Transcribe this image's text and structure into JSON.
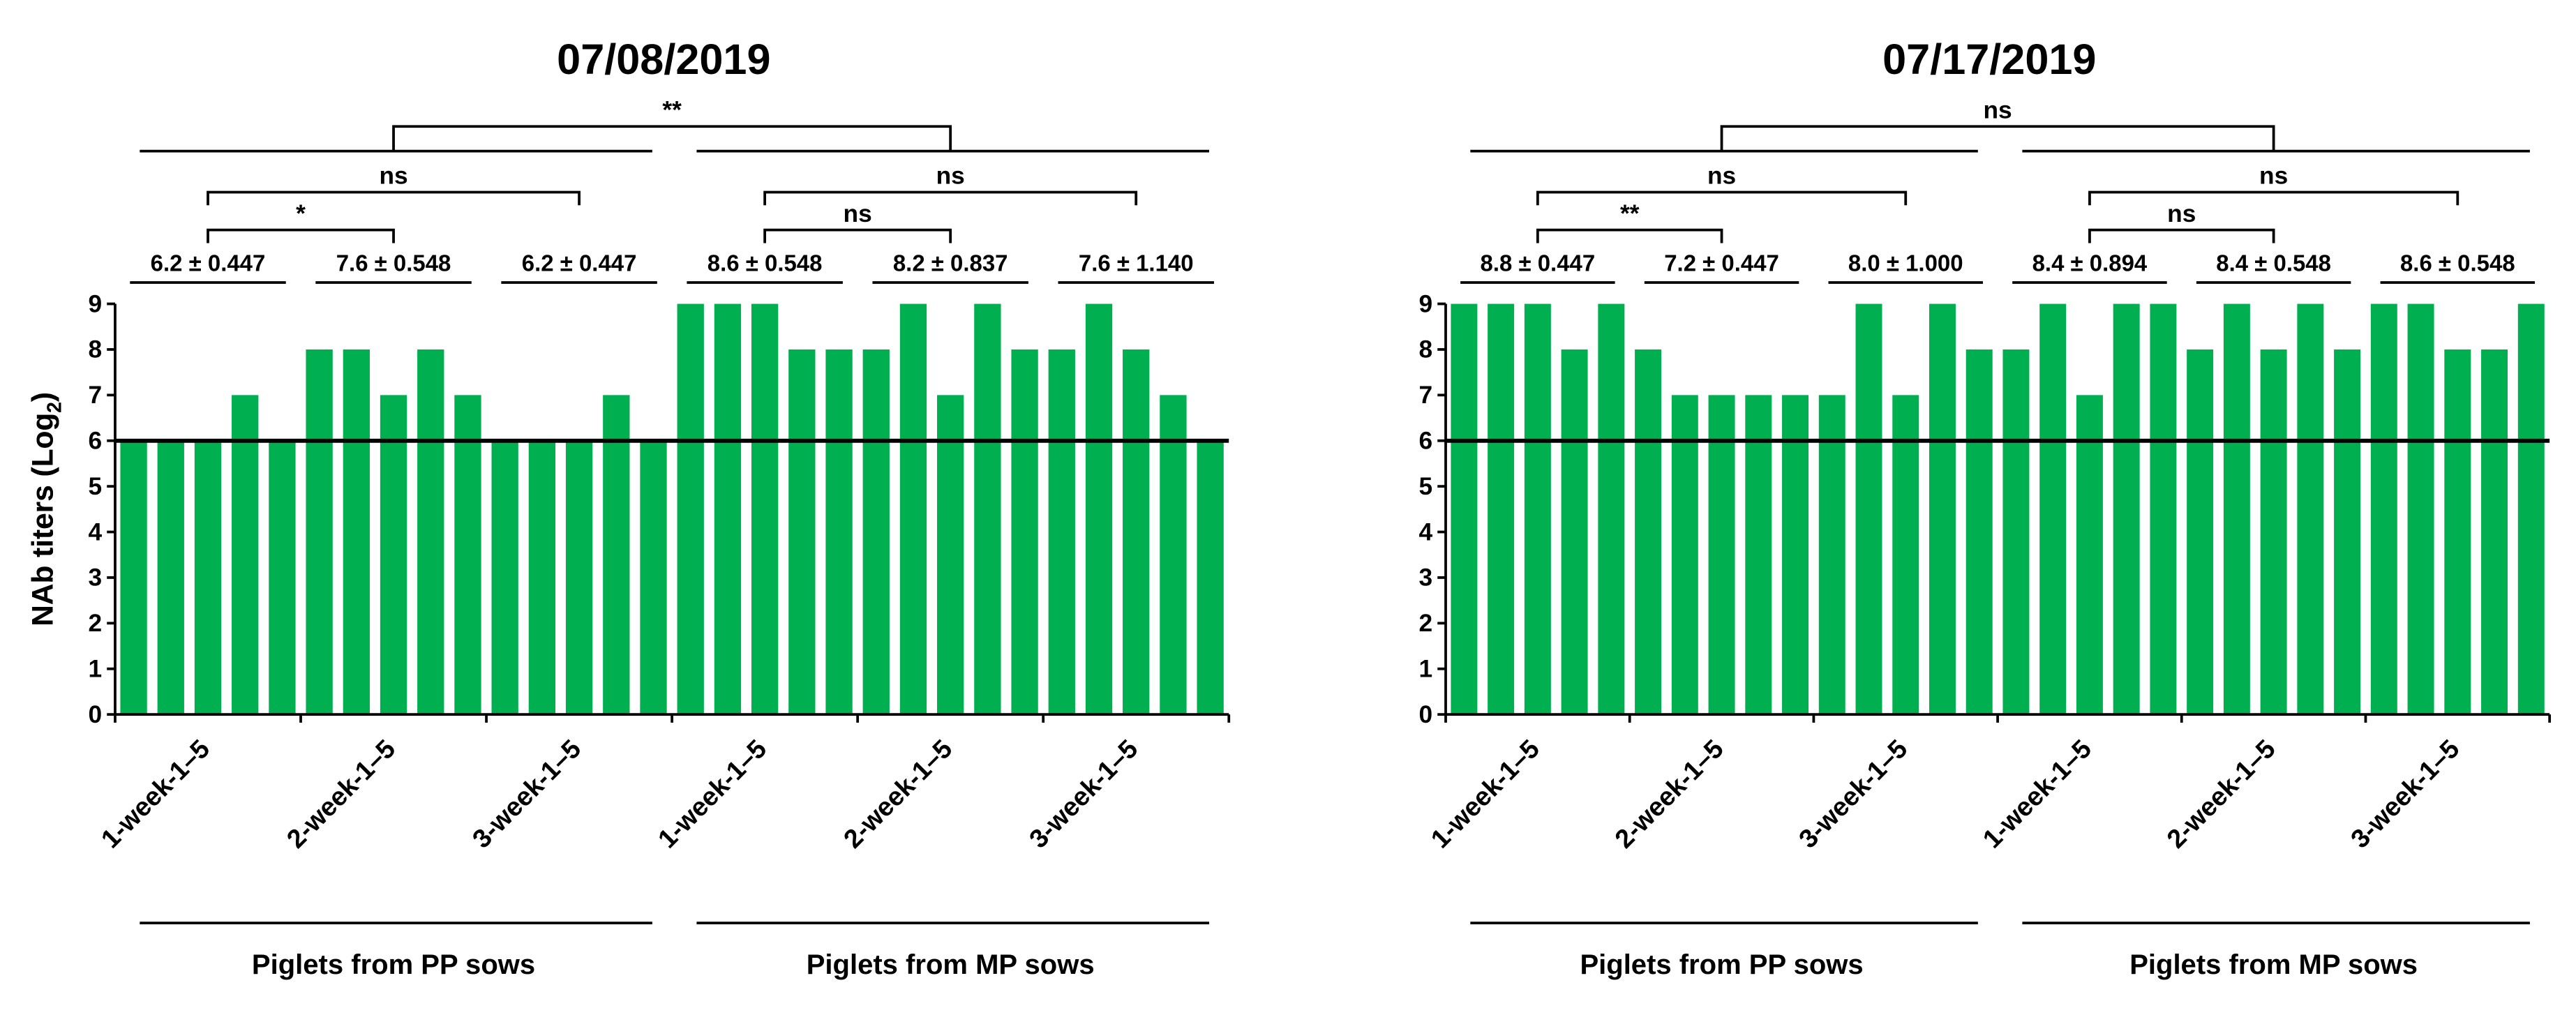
{
  "chart_data": [
    {
      "type": "bar",
      "title": "07/08/2019",
      "ylabel": {
        "text": "NAb titers (Log",
        "sub": "2",
        "end": ")"
      },
      "ylim": [
        0,
        9
      ],
      "yticks": [
        0,
        1,
        2,
        3,
        4,
        5,
        6,
        7,
        8,
        9
      ],
      "reference_line": 6,
      "color": "#00b050",
      "groups": [
        "1-week-1–5",
        "2-week-1–5",
        "3-week-1–5",
        "1-week-1–5",
        "2-week-1–5",
        "3-week-1–5"
      ],
      "stats": [
        "6.2 ± 0.447",
        "7.6 ± 0.548",
        "6.2 ± 0.447",
        "8.6 ± 0.548",
        "8.2 ± 0.837",
        "7.6 ± 1.140"
      ],
      "sides": [
        "Piglets from PP sows",
        "Piglets from MP sows"
      ],
      "values": [
        6,
        6,
        6,
        7,
        6,
        8,
        8,
        7,
        8,
        7,
        6,
        6,
        6,
        7,
        6,
        9,
        9,
        9,
        8,
        8,
        8,
        9,
        7,
        9,
        8,
        8,
        9,
        8,
        7,
        6
      ],
      "comparisons": [
        {
          "label": "*",
          "groups": [
            0,
            1
          ],
          "level": 1
        },
        {
          "label": "ns",
          "groups": [
            0,
            2
          ],
          "level": 2
        },
        {
          "label": "ns",
          "groups": [
            3,
            4
          ],
          "level": 1
        },
        {
          "label": "ns",
          "groups": [
            3,
            5
          ],
          "level": 2
        }
      ],
      "side_comparison": "**"
    },
    {
      "type": "bar",
      "title": "07/17/2019",
      "ylabel": {
        "text": "NAb titers (Log",
        "sub": "2",
        "end": ")"
      },
      "ylim": [
        0,
        9
      ],
      "yticks": [
        0,
        1,
        2,
        3,
        4,
        5,
        6,
        7,
        8,
        9
      ],
      "reference_line": 6,
      "color": "#00b050",
      "groups": [
        "1-week-1–5",
        "2-week-1–5",
        "3-week-1–5",
        "1-week-1–5",
        "2-week-1–5",
        "3-week-1–5"
      ],
      "stats": [
        "8.8 ± 0.447",
        "7.2 ± 0.447",
        "8.0 ± 1.000",
        "8.4 ± 0.894",
        "8.4 ± 0.548",
        "8.6 ± 0.548"
      ],
      "sides": [
        "Piglets from PP sows",
        "Piglets from MP sows"
      ],
      "values": [
        9,
        9,
        9,
        8,
        9,
        8,
        7,
        7,
        7,
        7,
        7,
        9,
        7,
        9,
        8,
        8,
        9,
        7,
        9,
        9,
        8,
        9,
        8,
        9,
        8,
        9,
        9,
        8,
        8,
        9
      ],
      "comparisons": [
        {
          "label": "**",
          "groups": [
            0,
            1
          ],
          "level": 1
        },
        {
          "label": "ns",
          "groups": [
            0,
            2
          ],
          "level": 2
        },
        {
          "label": "ns",
          "groups": [
            3,
            4
          ],
          "level": 1
        },
        {
          "label": "ns",
          "groups": [
            3,
            5
          ],
          "level": 2
        }
      ],
      "side_comparison": "ns"
    }
  ]
}
